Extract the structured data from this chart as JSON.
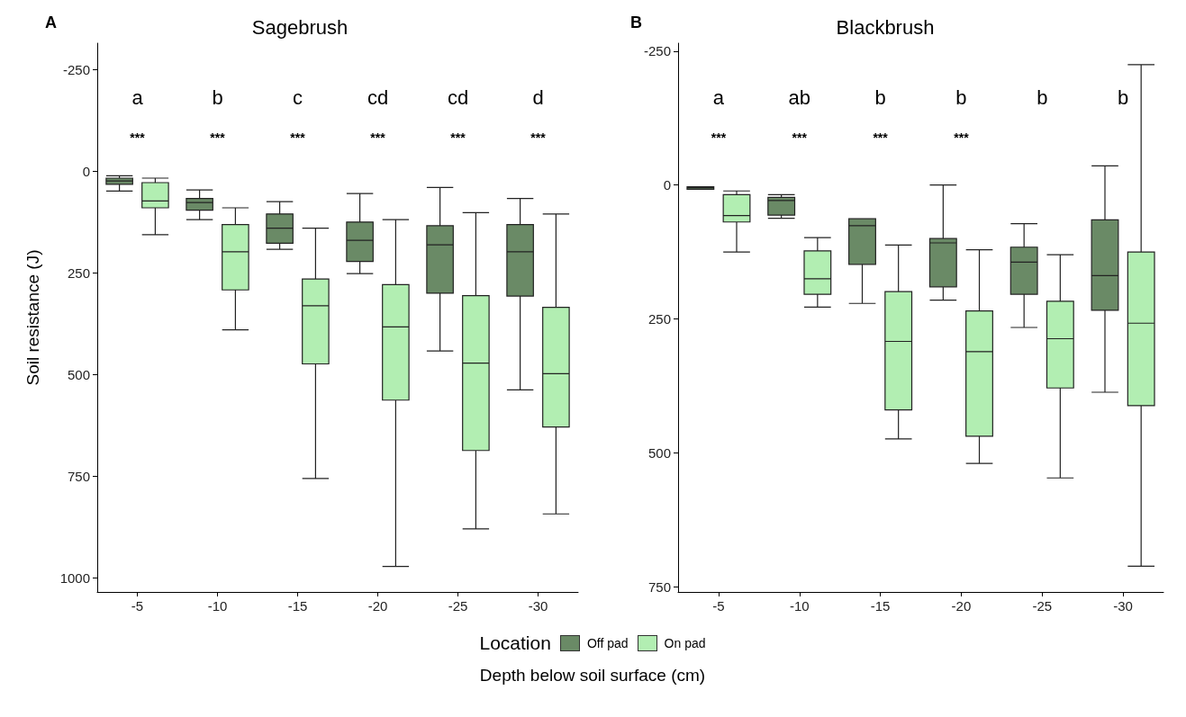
{
  "chart_data": [
    {
      "type": "box",
      "title": "Sagebrush",
      "ylabel": "Soil resistance (J)",
      "xlabel": "Depth below soil surface (cm)",
      "legend_title": "Location",
      "legend": "bottom",
      "grid": false,
      "categories": [
        "-5",
        "-10",
        "-15",
        "-20",
        "-25",
        "-30"
      ],
      "ylim": [
        1035,
        -315
      ],
      "yticks": [
        -250,
        0,
        250,
        500,
        750,
        1000
      ],
      "series": [
        {
          "name": "Off pad",
          "color": "#6a8a66",
          "boxes": [
            {
              "low": 11,
              "q1": 17,
              "median": 24,
              "q3": 32,
              "high": 49
            },
            {
              "low": 46,
              "q1": 67,
              "median": 77,
              "q3": 96,
              "high": 119
            },
            {
              "low": 75,
              "q1": 105,
              "median": 140,
              "q3": 177,
              "high": 192
            },
            {
              "low": 55,
              "q1": 125,
              "median": 170,
              "q3": 222,
              "high": 252
            },
            {
              "low": 40,
              "q1": 134,
              "median": 181,
              "q3": 300,
              "high": 442
            },
            {
              "low": 67,
              "q1": 131,
              "median": 198,
              "q3": 307,
              "high": 538
            }
          ]
        },
        {
          "name": "On pad",
          "color": "#b2eeb2",
          "boxes": [
            {
              "low": 17,
              "q1": 28,
              "median": 73,
              "q3": 90,
              "high": 156
            },
            {
              "low": 90,
              "q1": 131,
              "median": 198,
              "q3": 292,
              "high": 390
            },
            {
              "low": 140,
              "q1": 265,
              "median": 331,
              "q3": 474,
              "high": 756
            },
            {
              "low": 119,
              "q1": 279,
              "median": 383,
              "q3": 563,
              "high": 972
            },
            {
              "low": 102,
              "q1": 306,
              "median": 472,
              "q3": 687,
              "high": 880
            },
            {
              "low": 105,
              "q1": 335,
              "median": 498,
              "q3": 629,
              "high": 843
            }
          ]
        }
      ],
      "annotations": [
        "A",
        "a",
        "b",
        "c",
        "cd",
        "cd",
        "d",
        "***",
        "***",
        "***",
        "***",
        "***",
        "***"
      ]
    },
    {
      "type": "box",
      "title": "Blackbrush",
      "grid": false,
      "categories": [
        "-5",
        "-10",
        "-15",
        "-20",
        "-25",
        "-30"
      ],
      "ylim": [
        760,
        -265
      ],
      "yticks": [
        -250,
        0,
        250,
        500,
        750
      ],
      "series": [
        {
          "color": "#6a8a66",
          "boxes": [
            {
              "low": 3,
              "q1": 3,
              "median": 5,
              "q3": 8,
              "high": 8
            },
            {
              "low": 18,
              "q1": 23,
              "median": 29,
              "q3": 56,
              "high": 62
            },
            {
              "low": 63,
              "q1": 63,
              "median": 76,
              "q3": 148,
              "high": 221
            },
            {
              "low": 0,
              "q1": 100,
              "median": 108,
              "q3": 190,
              "high": 215
            },
            {
              "low": 72,
              "q1": 116,
              "median": 144,
              "q3": 204,
              "high": 266
            },
            {
              "low": -36,
              "q1": 65,
              "median": 169,
              "q3": 234,
              "high": 387
            }
          ]
        },
        {
          "color": "#b2eeb2",
          "boxes": [
            {
              "low": 11,
              "q1": 18,
              "median": 57,
              "q3": 69,
              "high": 125
            },
            {
              "low": 98,
              "q1": 123,
              "median": 175,
              "q3": 204,
              "high": 228
            },
            {
              "low": 112,
              "q1": 199,
              "median": 292,
              "q3": 420,
              "high": 474
            },
            {
              "low": 121,
              "q1": 235,
              "median": 311,
              "q3": 469,
              "high": 520
            },
            {
              "low": 130,
              "q1": 217,
              "median": 287,
              "q3": 379,
              "high": 547
            },
            {
              "low": -225,
              "q1": 125,
              "median": 258,
              "q3": 412,
              "high": 712
            }
          ]
        }
      ],
      "annotations": [
        "B",
        "a",
        "ab",
        "b",
        "b",
        "b",
        "b",
        "***",
        "***",
        "***",
        "***"
      ]
    }
  ]
}
